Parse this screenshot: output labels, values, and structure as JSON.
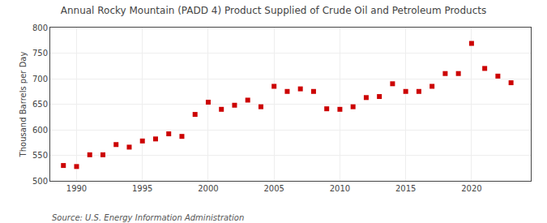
{
  "chart_data": {
    "type": "scatter",
    "title": "Annual Rocky Mountain (PADD 4) Product Supplied of Crude Oil and Petroleum Products",
    "ylabel": "Thousand Barrels per Day",
    "annotations": [
      "Source: U.S. Energy Information Administration"
    ],
    "x": [
      1989,
      1990,
      1991,
      1992,
      1993,
      1994,
      1995,
      1996,
      1997,
      1998,
      1999,
      2000,
      2001,
      2002,
      2003,
      2004,
      2005,
      2006,
      2007,
      2008,
      2009,
      2010,
      2011,
      2012,
      2013,
      2014,
      2015,
      2016,
      2017,
      2018,
      2019,
      2020,
      2021,
      2022,
      2023
    ],
    "values": [
      530,
      528,
      551,
      551,
      571,
      566,
      578,
      582,
      592,
      587,
      630,
      654,
      640,
      648,
      658,
      645,
      685,
      675,
      680,
      675,
      641,
      640,
      645,
      663,
      665,
      690,
      675,
      675,
      685,
      710,
      710,
      769,
      720,
      705,
      692
    ],
    "color": "#cc0000",
    "marker": "square",
    "xlim": [
      1988.0,
      2024.5
    ],
    "xticks": [
      1990,
      1995,
      2000,
      2005,
      2010,
      2015,
      2020
    ],
    "ylim": [
      500,
      800
    ],
    "yticks": [
      500,
      550,
      600,
      650,
      700,
      750,
      800
    ],
    "grid": true
  }
}
